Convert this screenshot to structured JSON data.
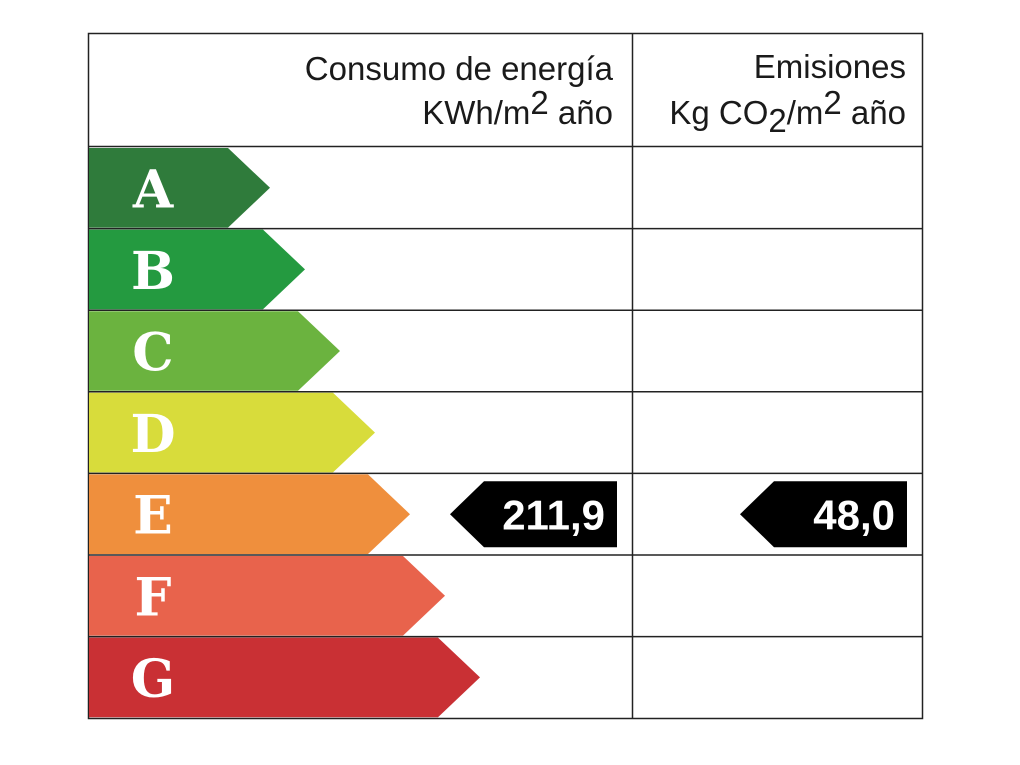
{
  "header": {
    "energy": {
      "title": "Consumo de energía",
      "unit_parts": [
        "KWh/m",
        "2",
        " año"
      ]
    },
    "emissions": {
      "title": "Emisiones",
      "unit_parts": [
        "Kg CO",
        "2",
        "/m",
        "2",
        " año"
      ]
    }
  },
  "classes": [
    {
      "label": "A",
      "color": "#2f7b3b"
    },
    {
      "label": "B",
      "color": "#249a40"
    },
    {
      "label": "C",
      "color": "#6bb33f"
    },
    {
      "label": "D",
      "color": "#d8dc3b"
    },
    {
      "label": "E",
      "color": "#ef8f3d"
    },
    {
      "label": "F",
      "color": "#e8634c"
    },
    {
      "label": "G",
      "color": "#c93034"
    }
  ],
  "ratings": {
    "energy": {
      "class": "E",
      "value": "211,9"
    },
    "emissions": {
      "class": "E",
      "value": "48,0"
    }
  }
}
